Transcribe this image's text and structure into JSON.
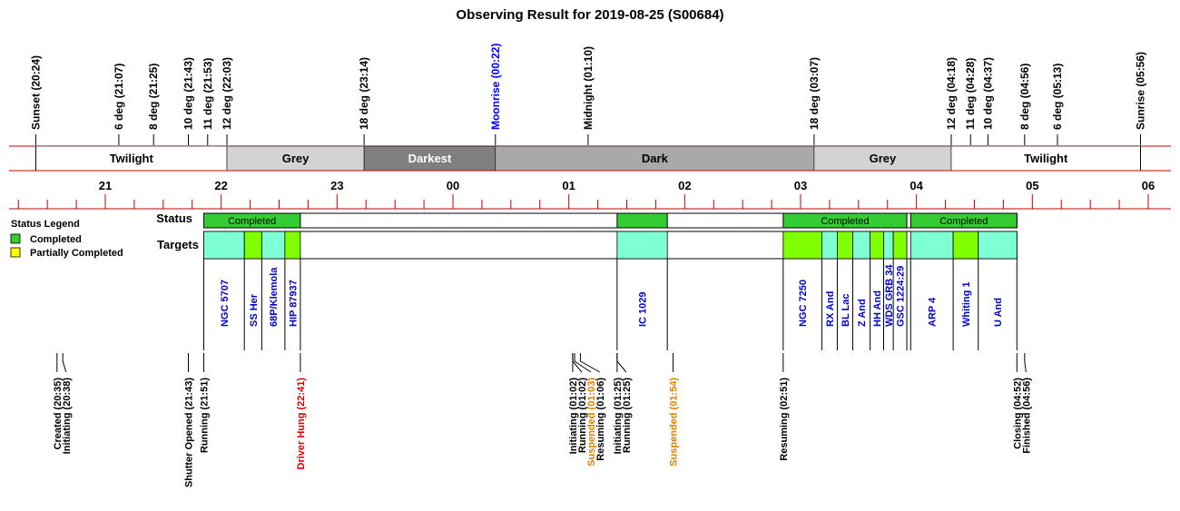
{
  "title": "Observing Result for 2019-08-25 (S00684)",
  "colors": {
    "axis_line": "#c80000",
    "completed": "#33cc33",
    "partial": "#ffff00",
    "target_cyan": "#7fffd4",
    "target_lime": "#80ff00",
    "twilight": "#ffffff",
    "grey": "#d3d3d3",
    "darkest": "#808080",
    "dark": "#a9a9a9",
    "label_blue": "#0000cc",
    "label_orange": "#e08000",
    "label_red": "#dd0000",
    "moon_blue": "#0000ff"
  },
  "chart_data": {
    "type": "timeline",
    "time_range": [
      "20:00",
      "06:10"
    ],
    "hour_ticks": [
      "21",
      "22",
      "23",
      "00",
      "01",
      "02",
      "03",
      "04",
      "05",
      "06"
    ],
    "sun_events": [
      {
        "label": "Sunset (20:24)",
        "time": "20:24"
      },
      {
        "label": "6 deg (21:07)",
        "time": "21:07"
      },
      {
        "label": "8 deg (21:25)",
        "time": "21:25"
      },
      {
        "label": "10 deg (21:43)",
        "time": "21:43"
      },
      {
        "label": "11 deg (21:53)",
        "time": "21:53"
      },
      {
        "label": "12 deg (22:03)",
        "time": "22:03"
      },
      {
        "label": "18 deg (23:14)",
        "time": "23:14"
      },
      {
        "label": "Moonrise (00:22)",
        "time": "00:22",
        "color": "moon_blue"
      },
      {
        "label": "Midnight (01:10)",
        "time": "01:10"
      },
      {
        "label": "18 deg (03:07)",
        "time": "03:07"
      },
      {
        "label": "12 deg (04:18)",
        "time": "04:18"
      },
      {
        "label": "11 deg (04:28)",
        "time": "04:28"
      },
      {
        "label": "10 deg (04:37)",
        "time": "04:37"
      },
      {
        "label": "8 deg (04:56)",
        "time": "04:56"
      },
      {
        "label": "6 deg (05:13)",
        "time": "05:13"
      },
      {
        "label": "Sunrise (05:56)",
        "time": "05:56"
      }
    ],
    "sky_bands": [
      {
        "label": "Twilight",
        "start": "20:24",
        "end": "22:03",
        "fill": "twilight",
        "text_color": "#000000"
      },
      {
        "label": "Grey",
        "start": "22:03",
        "end": "23:14",
        "fill": "grey",
        "text_color": "#000000"
      },
      {
        "label": "Darkest",
        "start": "23:14",
        "end": "00:22",
        "fill": "darkest",
        "text_color": "#ffffff"
      },
      {
        "label": "Dark",
        "start": "00:22",
        "end": "03:07",
        "fill": "dark",
        "text_color": "#000000"
      },
      {
        "label": "Grey",
        "start": "03:07",
        "end": "04:18",
        "fill": "grey",
        "text_color": "#000000"
      },
      {
        "label": "Twilight",
        "start": "04:18",
        "end": "05:56",
        "fill": "twilight",
        "text_color": "#000000"
      }
    ],
    "legend": {
      "title": "Status Legend",
      "items": [
        {
          "label": "Completed",
          "color": "completed"
        },
        {
          "label": "Partially Completed",
          "color": "partial"
        }
      ]
    },
    "row_labels": {
      "status": "Status",
      "targets": "Targets"
    },
    "status_frame": {
      "start": "21:51",
      "end": "04:52"
    },
    "status_blocks": [
      {
        "start": "21:51",
        "end": "22:41",
        "label": "Completed",
        "status": "completed"
      },
      {
        "start": "01:25",
        "end": "01:51",
        "label": "",
        "status": "completed"
      },
      {
        "start": "02:51",
        "end": "03:55",
        "label": "Completed",
        "status": "completed"
      },
      {
        "start": "03:57",
        "end": "04:52",
        "label": "Completed",
        "status": "completed"
      }
    ],
    "targets": [
      {
        "name": "NGC 5707",
        "start": "21:51",
        "end": "22:12",
        "fill": "target_cyan"
      },
      {
        "name": "SS Her",
        "start": "22:12",
        "end": "22:21",
        "fill": "target_lime"
      },
      {
        "name": "68P/Klemola",
        "start": "22:21",
        "end": "22:33",
        "fill": "target_cyan"
      },
      {
        "name": "HIP 87937",
        "start": "22:33",
        "end": "22:41",
        "fill": "target_lime"
      },
      {
        "name": "IC 1029",
        "start": "01:25",
        "end": "01:51",
        "fill": "target_cyan"
      },
      {
        "name": "NGC 7250",
        "start": "02:51",
        "end": "03:11",
        "fill": "target_lime"
      },
      {
        "name": "RX And",
        "start": "03:11",
        "end": "03:19",
        "fill": "target_cyan"
      },
      {
        "name": "BL Lac",
        "start": "03:19",
        "end": "03:27",
        "fill": "target_lime"
      },
      {
        "name": "Z And",
        "start": "03:27",
        "end": "03:36",
        "fill": "target_cyan"
      },
      {
        "name": "HH And",
        "start": "03:36",
        "end": "03:43",
        "fill": "target_lime"
      },
      {
        "name": "WDS GRB 34",
        "start": "03:43",
        "end": "03:48",
        "fill": "target_cyan"
      },
      {
        "name": "GSC 1224:29",
        "start": "03:48",
        "end": "03:55",
        "fill": "target_lime"
      },
      {
        "name": "ARP 4",
        "start": "03:57",
        "end": "04:19",
        "fill": "target_cyan"
      },
      {
        "name": "Whiting 1",
        "start": "04:19",
        "end": "04:32",
        "fill": "target_lime"
      },
      {
        "name": "U And",
        "start": "04:32",
        "end": "04:52",
        "fill": "target_cyan"
      }
    ],
    "events": [
      {
        "label": "Created (20:35)",
        "time": "20:35",
        "color": "#000000"
      },
      {
        "label": "Initiating (20:38)",
        "time": "20:38",
        "color": "#000000"
      },
      {
        "label": "Shutter Opened (21:43)",
        "time": "21:43",
        "color": "#000000"
      },
      {
        "label": "Running (21:51)",
        "time": "21:51",
        "color": "#000000"
      },
      {
        "label": "Driver Hung (22:41)",
        "time": "22:41",
        "color": "label_red"
      },
      {
        "label": "Initiating (01:02)",
        "time": "01:02",
        "color": "#000000"
      },
      {
        "label": "Running (01:02)",
        "time": "01:02",
        "color": "#000000"
      },
      {
        "label": "Suspended (01:03)",
        "time": "01:03",
        "color": "label_orange"
      },
      {
        "label": "Resuming (01:06)",
        "time": "01:06",
        "color": "#000000"
      },
      {
        "label": "Initiating (01:25)",
        "time": "01:25",
        "color": "#000000"
      },
      {
        "label": "Running (01:25)",
        "time": "01:25",
        "color": "#000000"
      },
      {
        "label": "Suspended (01:54)",
        "time": "01:54",
        "color": "label_orange"
      },
      {
        "label": "Resuming (02:51)",
        "time": "02:51",
        "color": "#000000"
      },
      {
        "label": "Closing (04:52)",
        "time": "04:52",
        "color": "#000000"
      },
      {
        "label": "Finished (04:56)",
        "time": "04:56",
        "color": "#000000"
      }
    ]
  }
}
